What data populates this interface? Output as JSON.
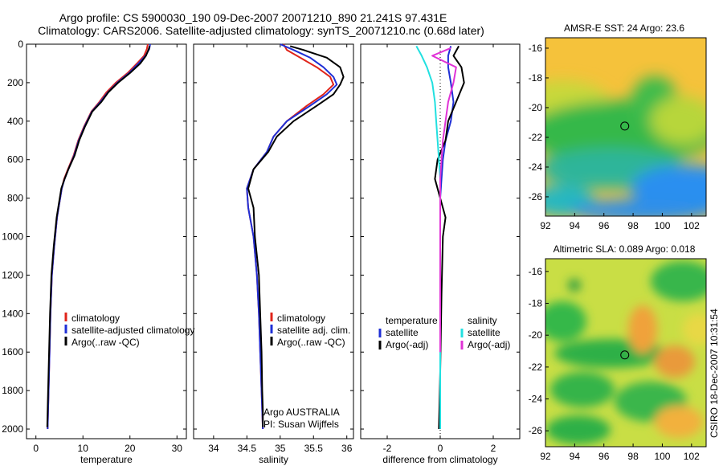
{
  "header": {
    "line1": "Argo profile: CS 5900030_190 09-Dec-2007 20071210_890 21.241S 97.431E",
    "line2": "Climatology: CARS2006. Satellite-adjusted climatology: synTS_20071210.nc (0.68d later)"
  },
  "side_label": "CSIRO 18-Dec-2007 10:31:54",
  "colors": {
    "climatology": "#e0241a",
    "satellite_adj": "#1f2fd6",
    "argo": "#000000",
    "sal_satellite": "#22e0e0",
    "sal_argo": "#e033d6"
  },
  "chart_data": [
    {
      "type": "line",
      "id": "temperature",
      "xlabel": "temperature",
      "ylabel": "",
      "xlim": [
        -2,
        32
      ],
      "ylim": [
        2050,
        0
      ],
      "xticks": [
        0,
        10,
        20,
        30
      ],
      "yticks": [
        0,
        200,
        400,
        600,
        800,
        1000,
        1200,
        1400,
        1600,
        1800,
        2000
      ],
      "legend": [
        "climatology",
        "satellite-adjusted climatology",
        "Argo(..raw -QC)"
      ],
      "series": [
        {
          "name": "climatology",
          "color": "#e0241a",
          "x": [
            23.8,
            23.6,
            23.0,
            21.5,
            19.5,
            17.0,
            15.0,
            13.5,
            11.8,
            10.2,
            9.0,
            8.0,
            6.8,
            6.0,
            5.5,
            4.5,
            3.9,
            3.4,
            3.1,
            2.9,
            2.7,
            2.5
          ],
          "y": [
            0,
            25,
            60,
            100,
            150,
            200,
            250,
            300,
            350,
            430,
            500,
            580,
            650,
            700,
            750,
            900,
            1050,
            1200,
            1400,
            1600,
            1800,
            2000
          ]
        },
        {
          "name": "satellite-adjusted climatology",
          "color": "#1f2fd6",
          "x": [
            24.3,
            24.1,
            23.3,
            21.8,
            19.8,
            17.3,
            15.3,
            13.7,
            11.9,
            10.3,
            9.1,
            8.1,
            6.9,
            6.1,
            5.5,
            4.5,
            3.9,
            3.4,
            3.1,
            2.9,
            2.7,
            2.5
          ],
          "y": [
            0,
            25,
            60,
            100,
            150,
            200,
            250,
            300,
            350,
            430,
            500,
            580,
            650,
            700,
            750,
            900,
            1050,
            1200,
            1400,
            1600,
            1800,
            2000
          ]
        },
        {
          "name": "Argo(..raw -QC)",
          "color": "#000000",
          "x": [
            24.2,
            24.0,
            23.4,
            22.2,
            20.0,
            17.5,
            15.4,
            13.9,
            12.0,
            10.4,
            9.2,
            8.2,
            6.9,
            6.1,
            5.4,
            4.4,
            3.8,
            3.3,
            3.0,
            2.8,
            2.6,
            2.4
          ],
          "y": [
            10,
            25,
            60,
            100,
            150,
            200,
            250,
            300,
            350,
            430,
            500,
            580,
            650,
            700,
            750,
            900,
            1050,
            1200,
            1400,
            1600,
            1800,
            1990
          ]
        }
      ]
    },
    {
      "type": "line",
      "id": "salinity",
      "xlabel": "salinity",
      "xlim": [
        33.7,
        36.1
      ],
      "ylim": [
        2050,
        0
      ],
      "xticks": [
        34,
        34.5,
        35,
        35.5,
        36
      ],
      "legend": [
        "climatology",
        "satellite adj. clim.",
        "Argo(..raw -QC)"
      ],
      "annotation": [
        "Argo AUSTRALIA",
        "PI: Susan Wijffels"
      ],
      "series": [
        {
          "name": "climatology",
          "color": "#e0241a",
          "x": [
            35.05,
            35.1,
            35.3,
            35.55,
            35.75,
            35.8,
            35.65,
            35.4,
            35.1,
            34.9,
            34.8,
            34.6,
            34.5,
            34.52,
            34.6,
            34.65,
            34.68,
            34.7,
            34.72,
            34.73,
            34.74
          ],
          "y": [
            0,
            30,
            70,
            120,
            170,
            210,
            260,
            320,
            400,
            480,
            560,
            650,
            750,
            850,
            1000,
            1200,
            1400,
            1600,
            1800,
            1900,
            2000
          ]
        },
        {
          "name": "satellite adj. clim.",
          "color": "#1f2fd6",
          "x": [
            35.0,
            35.2,
            35.45,
            35.65,
            35.8,
            35.85,
            35.7,
            35.45,
            35.1,
            34.9,
            34.8,
            34.6,
            34.5,
            34.52,
            34.6,
            34.65,
            34.68,
            34.7,
            34.72,
            34.73,
            34.74
          ],
          "y": [
            0,
            30,
            70,
            120,
            170,
            210,
            260,
            320,
            400,
            480,
            560,
            650,
            750,
            850,
            1000,
            1200,
            1400,
            1600,
            1800,
            1900,
            2000
          ]
        },
        {
          "name": "Argo(..raw -QC)",
          "color": "#000000",
          "x": [
            35.15,
            35.35,
            35.7,
            35.9,
            35.95,
            35.9,
            35.8,
            35.55,
            35.2,
            34.95,
            34.82,
            34.6,
            34.52,
            34.6,
            34.62,
            34.68,
            34.7,
            34.72,
            34.73,
            34.74,
            34.74
          ],
          "y": [
            10,
            30,
            70,
            120,
            170,
            210,
            260,
            320,
            400,
            480,
            560,
            650,
            750,
            850,
            1000,
            1200,
            1400,
            1600,
            1800,
            1900,
            1990
          ]
        }
      ]
    },
    {
      "type": "line",
      "id": "difference",
      "xlabel": "difference from climatology",
      "xlim": [
        -3,
        3
      ],
      "ylim": [
        2050,
        0
      ],
      "xticks": [
        -2,
        0,
        2
      ],
      "legend_left_title": "temperature",
      "legend_left": [
        "satellite",
        "Argo(-adj)"
      ],
      "legend_right_title": "salinity",
      "legend_right": [
        "satellite",
        "Argo(-adj)"
      ],
      "series": [
        {
          "name": "temperature satellite",
          "color": "#1f2fd6",
          "x": [
            0.4,
            0.3,
            0.3,
            0.4,
            0.5,
            0.4,
            0.2,
            0.1,
            0.05,
            0.0,
            0.0,
            0.0,
            0.0,
            0.0,
            0.0
          ],
          "y": [
            10,
            60,
            120,
            200,
            300,
            400,
            500,
            600,
            700,
            800,
            1000,
            1200,
            1500,
            1800,
            2000
          ]
        },
        {
          "name": "temperature Argo(-adj)",
          "color": "#000000",
          "x": [
            0.7,
            0.5,
            0.8,
            0.9,
            0.6,
            0.3,
            0.2,
            -0.1,
            -0.2,
            0.0,
            0.2,
            0.1,
            0.05,
            0.0,
            -0.05
          ],
          "y": [
            10,
            60,
            120,
            200,
            300,
            400,
            500,
            600,
            700,
            800,
            900,
            1000,
            1300,
            1700,
            2000
          ]
        },
        {
          "name": "salinity satellite",
          "color": "#22e0e0",
          "x": [
            -0.9,
            -0.7,
            -0.5,
            -0.3,
            -0.2,
            -0.15,
            -0.1,
            -0.05,
            0.0,
            0.0,
            0.0,
            0.0,
            0.0
          ],
          "y": [
            10,
            60,
            120,
            200,
            300,
            400,
            500,
            600,
            700,
            900,
            1200,
            1600,
            2000
          ]
        },
        {
          "name": "salinity Argo(-adj)",
          "color": "#e033d6",
          "x": [
            0.4,
            -0.3,
            0.6,
            0.5,
            0.3,
            0.2,
            0.1,
            0.05,
            0.0,
            0.0,
            0.0,
            0.0
          ],
          "y": [
            20,
            60,
            120,
            200,
            300,
            400,
            500,
            600,
            700,
            900,
            1200,
            1600
          ]
        }
      ]
    },
    {
      "type": "heatmap",
      "id": "sst_map",
      "title": "AMSR-E SST: 24 Argo: 23.6",
      "xlim": [
        92,
        103
      ],
      "ylim": [
        -27.3,
        -15.3
      ],
      "xticks": [
        92,
        94,
        96,
        98,
        100,
        102
      ],
      "xtick_labels": [
        "92",
        "94",
        "96",
        "98",
        "100",
        "102"
      ],
      "yticks": [
        -16,
        -18,
        -20,
        -22,
        -24,
        -26
      ],
      "ytick_labels": [
        "-16",
        "-18",
        "-20",
        "-22",
        "-24",
        "-26"
      ],
      "marker": [
        97.43,
        -21.24
      ]
    },
    {
      "type": "heatmap",
      "id": "sla_map",
      "title": "Altimetric SLA: 0.089 Argo: 0.018",
      "xlim": [
        92,
        103
      ],
      "ylim": [
        -27,
        -15.2
      ],
      "xticks": [
        92,
        94,
        96,
        98,
        100,
        102
      ],
      "xtick_labels": [
        "92",
        "94",
        "96",
        "98",
        "100",
        "102"
      ],
      "yticks": [
        -16,
        -18,
        -20,
        -22,
        -24,
        -26
      ],
      "ytick_labels": [
        "-16",
        "-18",
        "-20",
        "-22",
        "-24",
        "-26"
      ],
      "marker": [
        97.43,
        -21.24
      ]
    }
  ]
}
